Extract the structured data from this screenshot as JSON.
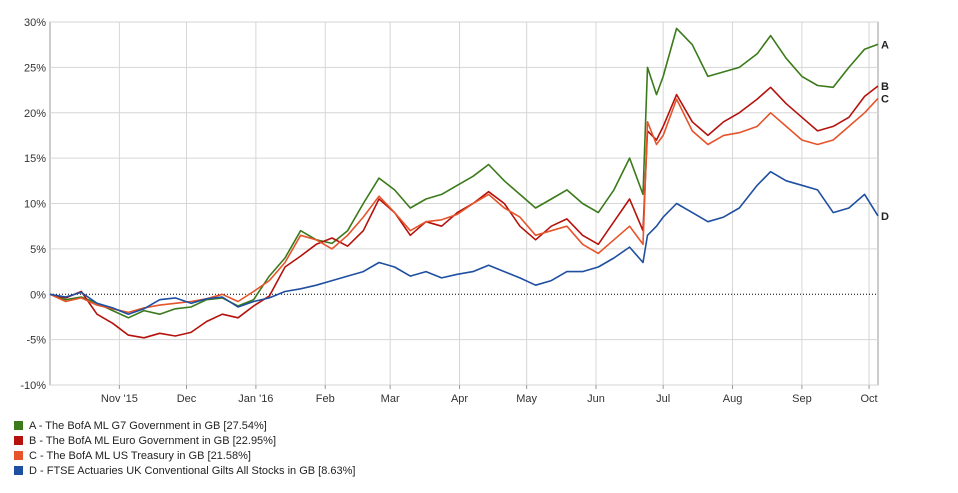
{
  "chart_data": {
    "type": "line",
    "title": "",
    "xlabel": "",
    "ylabel": "",
    "ylim": [
      -10,
      30
    ],
    "y_ticks": [
      -10,
      -5,
      0,
      5,
      10,
      15,
      20,
      25,
      30
    ],
    "y_tick_labels": [
      "-10%",
      "-5%",
      "0%",
      "5%",
      "10%",
      "15%",
      "20%",
      "25%",
      "30%"
    ],
    "x_domain": [
      "2015-10-01",
      "2016-10-05"
    ],
    "x_ticks": [
      {
        "date": "2015-11-01",
        "label": "Nov '15"
      },
      {
        "date": "2015-12-01",
        "label": "Dec"
      },
      {
        "date": "2016-01-01",
        "label": "Jan '16"
      },
      {
        "date": "2016-02-01",
        "label": "Feb"
      },
      {
        "date": "2016-03-01",
        "label": "Mar"
      },
      {
        "date": "2016-04-01",
        "label": "Apr"
      },
      {
        "date": "2016-05-01",
        "label": "May"
      },
      {
        "date": "2016-06-01",
        "label": "Jun"
      },
      {
        "date": "2016-07-01",
        "label": "Jul"
      },
      {
        "date": "2016-08-01",
        "label": "Aug"
      },
      {
        "date": "2016-09-01",
        "label": "Sep"
      },
      {
        "date": "2016-10-01",
        "label": "Oct"
      }
    ],
    "grid": true,
    "zero_line": "dotted",
    "legend_position": "bottom-left",
    "series": [
      {
        "key": "A",
        "end_label": "A",
        "legend": "A - The BofA ML G7 Government in GB [27.54%]",
        "color": "#3b7a1a",
        "points": [
          [
            "2015-10-01",
            0
          ],
          [
            "2015-10-08",
            -0.6
          ],
          [
            "2015-10-15",
            -0.3
          ],
          [
            "2015-10-22",
            -1.0
          ],
          [
            "2015-10-29",
            -1.8
          ],
          [
            "2015-11-05",
            -2.6
          ],
          [
            "2015-11-12",
            -1.8
          ],
          [
            "2015-11-19",
            -2.2
          ],
          [
            "2015-11-26",
            -1.6
          ],
          [
            "2015-12-03",
            -1.4
          ],
          [
            "2015-12-10",
            -0.6
          ],
          [
            "2015-12-17",
            -0.4
          ],
          [
            "2015-12-24",
            -1.3
          ],
          [
            "2015-12-31",
            -0.6
          ],
          [
            "2016-01-07",
            2.0
          ],
          [
            "2016-01-14",
            4.0
          ],
          [
            "2016-01-21",
            7.0
          ],
          [
            "2016-01-28",
            6.0
          ],
          [
            "2016-02-04",
            5.6
          ],
          [
            "2016-02-11",
            7.0
          ],
          [
            "2016-02-18",
            10.0
          ],
          [
            "2016-02-25",
            12.8
          ],
          [
            "2016-03-03",
            11.5
          ],
          [
            "2016-03-10",
            9.5
          ],
          [
            "2016-03-17",
            10.5
          ],
          [
            "2016-03-24",
            11.0
          ],
          [
            "2016-03-31",
            12.0
          ],
          [
            "2016-04-07",
            13.0
          ],
          [
            "2016-04-14",
            14.3
          ],
          [
            "2016-04-21",
            12.5
          ],
          [
            "2016-04-28",
            11.0
          ],
          [
            "2016-05-05",
            9.5
          ],
          [
            "2016-05-12",
            10.5
          ],
          [
            "2016-05-19",
            11.5
          ],
          [
            "2016-05-26",
            10.0
          ],
          [
            "2016-06-02",
            9.0
          ],
          [
            "2016-06-09",
            11.5
          ],
          [
            "2016-06-16",
            15.0
          ],
          [
            "2016-06-22",
            11.0
          ],
          [
            "2016-06-24",
            25.0
          ],
          [
            "2016-06-28",
            22.0
          ],
          [
            "2016-07-01",
            24.0
          ],
          [
            "2016-07-07",
            29.3
          ],
          [
            "2016-07-14",
            27.5
          ],
          [
            "2016-07-21",
            24.0
          ],
          [
            "2016-07-28",
            24.5
          ],
          [
            "2016-08-04",
            25.0
          ],
          [
            "2016-08-12",
            26.5
          ],
          [
            "2016-08-18",
            28.5
          ],
          [
            "2016-08-25",
            26.0
          ],
          [
            "2016-09-01",
            24.0
          ],
          [
            "2016-09-08",
            23.0
          ],
          [
            "2016-09-15",
            22.8
          ],
          [
            "2016-09-22",
            25.0
          ],
          [
            "2016-09-29",
            27.0
          ],
          [
            "2016-10-05",
            27.54
          ]
        ]
      },
      {
        "key": "B",
        "end_label": "B",
        "legend": "B - The BofA ML Euro Government in GB [22.95%]",
        "color": "#b5120b",
        "points": [
          [
            "2015-10-01",
            0
          ],
          [
            "2015-10-08",
            -0.4
          ],
          [
            "2015-10-15",
            0.3
          ],
          [
            "2015-10-22",
            -2.2
          ],
          [
            "2015-10-29",
            -3.2
          ],
          [
            "2015-11-05",
            -4.5
          ],
          [
            "2015-11-12",
            -4.8
          ],
          [
            "2015-11-19",
            -4.3
          ],
          [
            "2015-11-26",
            -4.6
          ],
          [
            "2015-12-03",
            -4.2
          ],
          [
            "2015-12-10",
            -3.0
          ],
          [
            "2015-12-17",
            -2.2
          ],
          [
            "2015-12-24",
            -2.6
          ],
          [
            "2015-12-31",
            -1.3
          ],
          [
            "2016-01-07",
            -0.2
          ],
          [
            "2016-01-14",
            3.0
          ],
          [
            "2016-01-21",
            4.2
          ],
          [
            "2016-01-28",
            5.5
          ],
          [
            "2016-02-04",
            6.2
          ],
          [
            "2016-02-11",
            5.3
          ],
          [
            "2016-02-18",
            7.0
          ],
          [
            "2016-02-25",
            10.5
          ],
          [
            "2016-03-03",
            9.0
          ],
          [
            "2016-03-10",
            6.5
          ],
          [
            "2016-03-17",
            8.0
          ],
          [
            "2016-03-24",
            7.5
          ],
          [
            "2016-03-31",
            9.0
          ],
          [
            "2016-04-07",
            10.0
          ],
          [
            "2016-04-14",
            11.3
          ],
          [
            "2016-04-21",
            10.0
          ],
          [
            "2016-04-28",
            7.5
          ],
          [
            "2016-05-05",
            6.0
          ],
          [
            "2016-05-12",
            7.5
          ],
          [
            "2016-05-19",
            8.3
          ],
          [
            "2016-05-26",
            6.5
          ],
          [
            "2016-06-02",
            5.5
          ],
          [
            "2016-06-09",
            8.0
          ],
          [
            "2016-06-16",
            10.5
          ],
          [
            "2016-06-22",
            7.0
          ],
          [
            "2016-06-24",
            18.0
          ],
          [
            "2016-06-28",
            17.0
          ],
          [
            "2016-07-01",
            18.5
          ],
          [
            "2016-07-07",
            22.0
          ],
          [
            "2016-07-14",
            19.0
          ],
          [
            "2016-07-21",
            17.5
          ],
          [
            "2016-07-28",
            19.0
          ],
          [
            "2016-08-04",
            20.0
          ],
          [
            "2016-08-12",
            21.5
          ],
          [
            "2016-08-18",
            22.8
          ],
          [
            "2016-08-25",
            21.0
          ],
          [
            "2016-09-01",
            19.5
          ],
          [
            "2016-09-08",
            18.0
          ],
          [
            "2016-09-15",
            18.5
          ],
          [
            "2016-09-22",
            19.5
          ],
          [
            "2016-09-29",
            21.8
          ],
          [
            "2016-10-05",
            22.95
          ]
        ]
      },
      {
        "key": "C",
        "end_label": "C",
        "legend": "C - The BofA ML US Treasury in GB [21.58%]",
        "color": "#e5542b",
        "points": [
          [
            "2015-10-01",
            0
          ],
          [
            "2015-10-08",
            -0.8
          ],
          [
            "2015-10-15",
            -0.4
          ],
          [
            "2015-10-22",
            -1.2
          ],
          [
            "2015-10-29",
            -1.6
          ],
          [
            "2015-11-05",
            -2.0
          ],
          [
            "2015-11-12",
            -1.5
          ],
          [
            "2015-11-19",
            -1.2
          ],
          [
            "2015-11-26",
            -1.0
          ],
          [
            "2015-12-03",
            -0.8
          ],
          [
            "2015-12-10",
            -0.5
          ],
          [
            "2015-12-17",
            0.0
          ],
          [
            "2015-12-24",
            -0.8
          ],
          [
            "2015-12-31",
            0.3
          ],
          [
            "2016-01-07",
            1.5
          ],
          [
            "2016-01-14",
            3.5
          ],
          [
            "2016-01-21",
            6.5
          ],
          [
            "2016-01-28",
            6.0
          ],
          [
            "2016-02-04",
            5.0
          ],
          [
            "2016-02-11",
            6.5
          ],
          [
            "2016-02-18",
            8.5
          ],
          [
            "2016-02-25",
            10.8
          ],
          [
            "2016-03-03",
            9.0
          ],
          [
            "2016-03-10",
            7.0
          ],
          [
            "2016-03-17",
            8.0
          ],
          [
            "2016-03-24",
            8.2
          ],
          [
            "2016-03-31",
            8.8
          ],
          [
            "2016-04-07",
            10.0
          ],
          [
            "2016-04-14",
            11.0
          ],
          [
            "2016-04-21",
            9.5
          ],
          [
            "2016-04-28",
            8.5
          ],
          [
            "2016-05-05",
            6.5
          ],
          [
            "2016-05-12",
            7.0
          ],
          [
            "2016-05-19",
            7.5
          ],
          [
            "2016-05-26",
            5.5
          ],
          [
            "2016-06-02",
            4.5
          ],
          [
            "2016-06-09",
            6.0
          ],
          [
            "2016-06-16",
            7.5
          ],
          [
            "2016-06-22",
            5.5
          ],
          [
            "2016-06-24",
            19.0
          ],
          [
            "2016-06-28",
            16.5
          ],
          [
            "2016-07-01",
            17.5
          ],
          [
            "2016-07-07",
            21.5
          ],
          [
            "2016-07-14",
            18.0
          ],
          [
            "2016-07-21",
            16.5
          ],
          [
            "2016-07-28",
            17.5
          ],
          [
            "2016-08-04",
            17.8
          ],
          [
            "2016-08-12",
            18.5
          ],
          [
            "2016-08-18",
            20.0
          ],
          [
            "2016-08-25",
            18.5
          ],
          [
            "2016-09-01",
            17.0
          ],
          [
            "2016-09-08",
            16.5
          ],
          [
            "2016-09-15",
            17.0
          ],
          [
            "2016-09-22",
            18.5
          ],
          [
            "2016-09-29",
            20.0
          ],
          [
            "2016-10-05",
            21.58
          ]
        ]
      },
      {
        "key": "D",
        "end_label": "D",
        "legend": "D - FTSE Actuaries UK Conventional Gilts All Stocks in GB [8.63%]",
        "color": "#1f4fa0",
        "points": [
          [
            "2015-10-01",
            0
          ],
          [
            "2015-10-08",
            -0.3
          ],
          [
            "2015-10-15",
            0.2
          ],
          [
            "2015-10-22",
            -1.0
          ],
          [
            "2015-10-29",
            -1.5
          ],
          [
            "2015-11-05",
            -2.2
          ],
          [
            "2015-11-12",
            -1.6
          ],
          [
            "2015-11-19",
            -0.6
          ],
          [
            "2015-11-26",
            -0.4
          ],
          [
            "2015-12-03",
            -1.0
          ],
          [
            "2015-12-10",
            -0.5
          ],
          [
            "2015-12-17",
            -0.3
          ],
          [
            "2015-12-24",
            -1.4
          ],
          [
            "2015-12-31",
            -0.8
          ],
          [
            "2016-01-07",
            -0.4
          ],
          [
            "2016-01-14",
            0.3
          ],
          [
            "2016-01-21",
            0.6
          ],
          [
            "2016-01-28",
            1.0
          ],
          [
            "2016-02-04",
            1.5
          ],
          [
            "2016-02-11",
            2.0
          ],
          [
            "2016-02-18",
            2.5
          ],
          [
            "2016-02-25",
            3.5
          ],
          [
            "2016-03-03",
            3.0
          ],
          [
            "2016-03-10",
            2.0
          ],
          [
            "2016-03-17",
            2.5
          ],
          [
            "2016-03-24",
            1.8
          ],
          [
            "2016-03-31",
            2.2
          ],
          [
            "2016-04-07",
            2.5
          ],
          [
            "2016-04-14",
            3.2
          ],
          [
            "2016-04-21",
            2.5
          ],
          [
            "2016-04-28",
            1.8
          ],
          [
            "2016-05-05",
            1.0
          ],
          [
            "2016-05-12",
            1.5
          ],
          [
            "2016-05-19",
            2.5
          ],
          [
            "2016-05-26",
            2.5
          ],
          [
            "2016-06-02",
            3.0
          ],
          [
            "2016-06-09",
            4.0
          ],
          [
            "2016-06-16",
            5.2
          ],
          [
            "2016-06-22",
            3.5
          ],
          [
            "2016-06-24",
            6.5
          ],
          [
            "2016-06-28",
            7.5
          ],
          [
            "2016-07-01",
            8.5
          ],
          [
            "2016-07-07",
            10.0
          ],
          [
            "2016-07-14",
            9.0
          ],
          [
            "2016-07-21",
            8.0
          ],
          [
            "2016-07-28",
            8.5
          ],
          [
            "2016-08-04",
            9.5
          ],
          [
            "2016-08-12",
            12.0
          ],
          [
            "2016-08-18",
            13.5
          ],
          [
            "2016-08-25",
            12.5
          ],
          [
            "2016-09-01",
            12.0
          ],
          [
            "2016-09-08",
            11.5
          ],
          [
            "2016-09-15",
            9.0
          ],
          [
            "2016-09-22",
            9.5
          ],
          [
            "2016-09-29",
            11.0
          ],
          [
            "2016-10-05",
            8.63
          ]
        ]
      }
    ]
  }
}
